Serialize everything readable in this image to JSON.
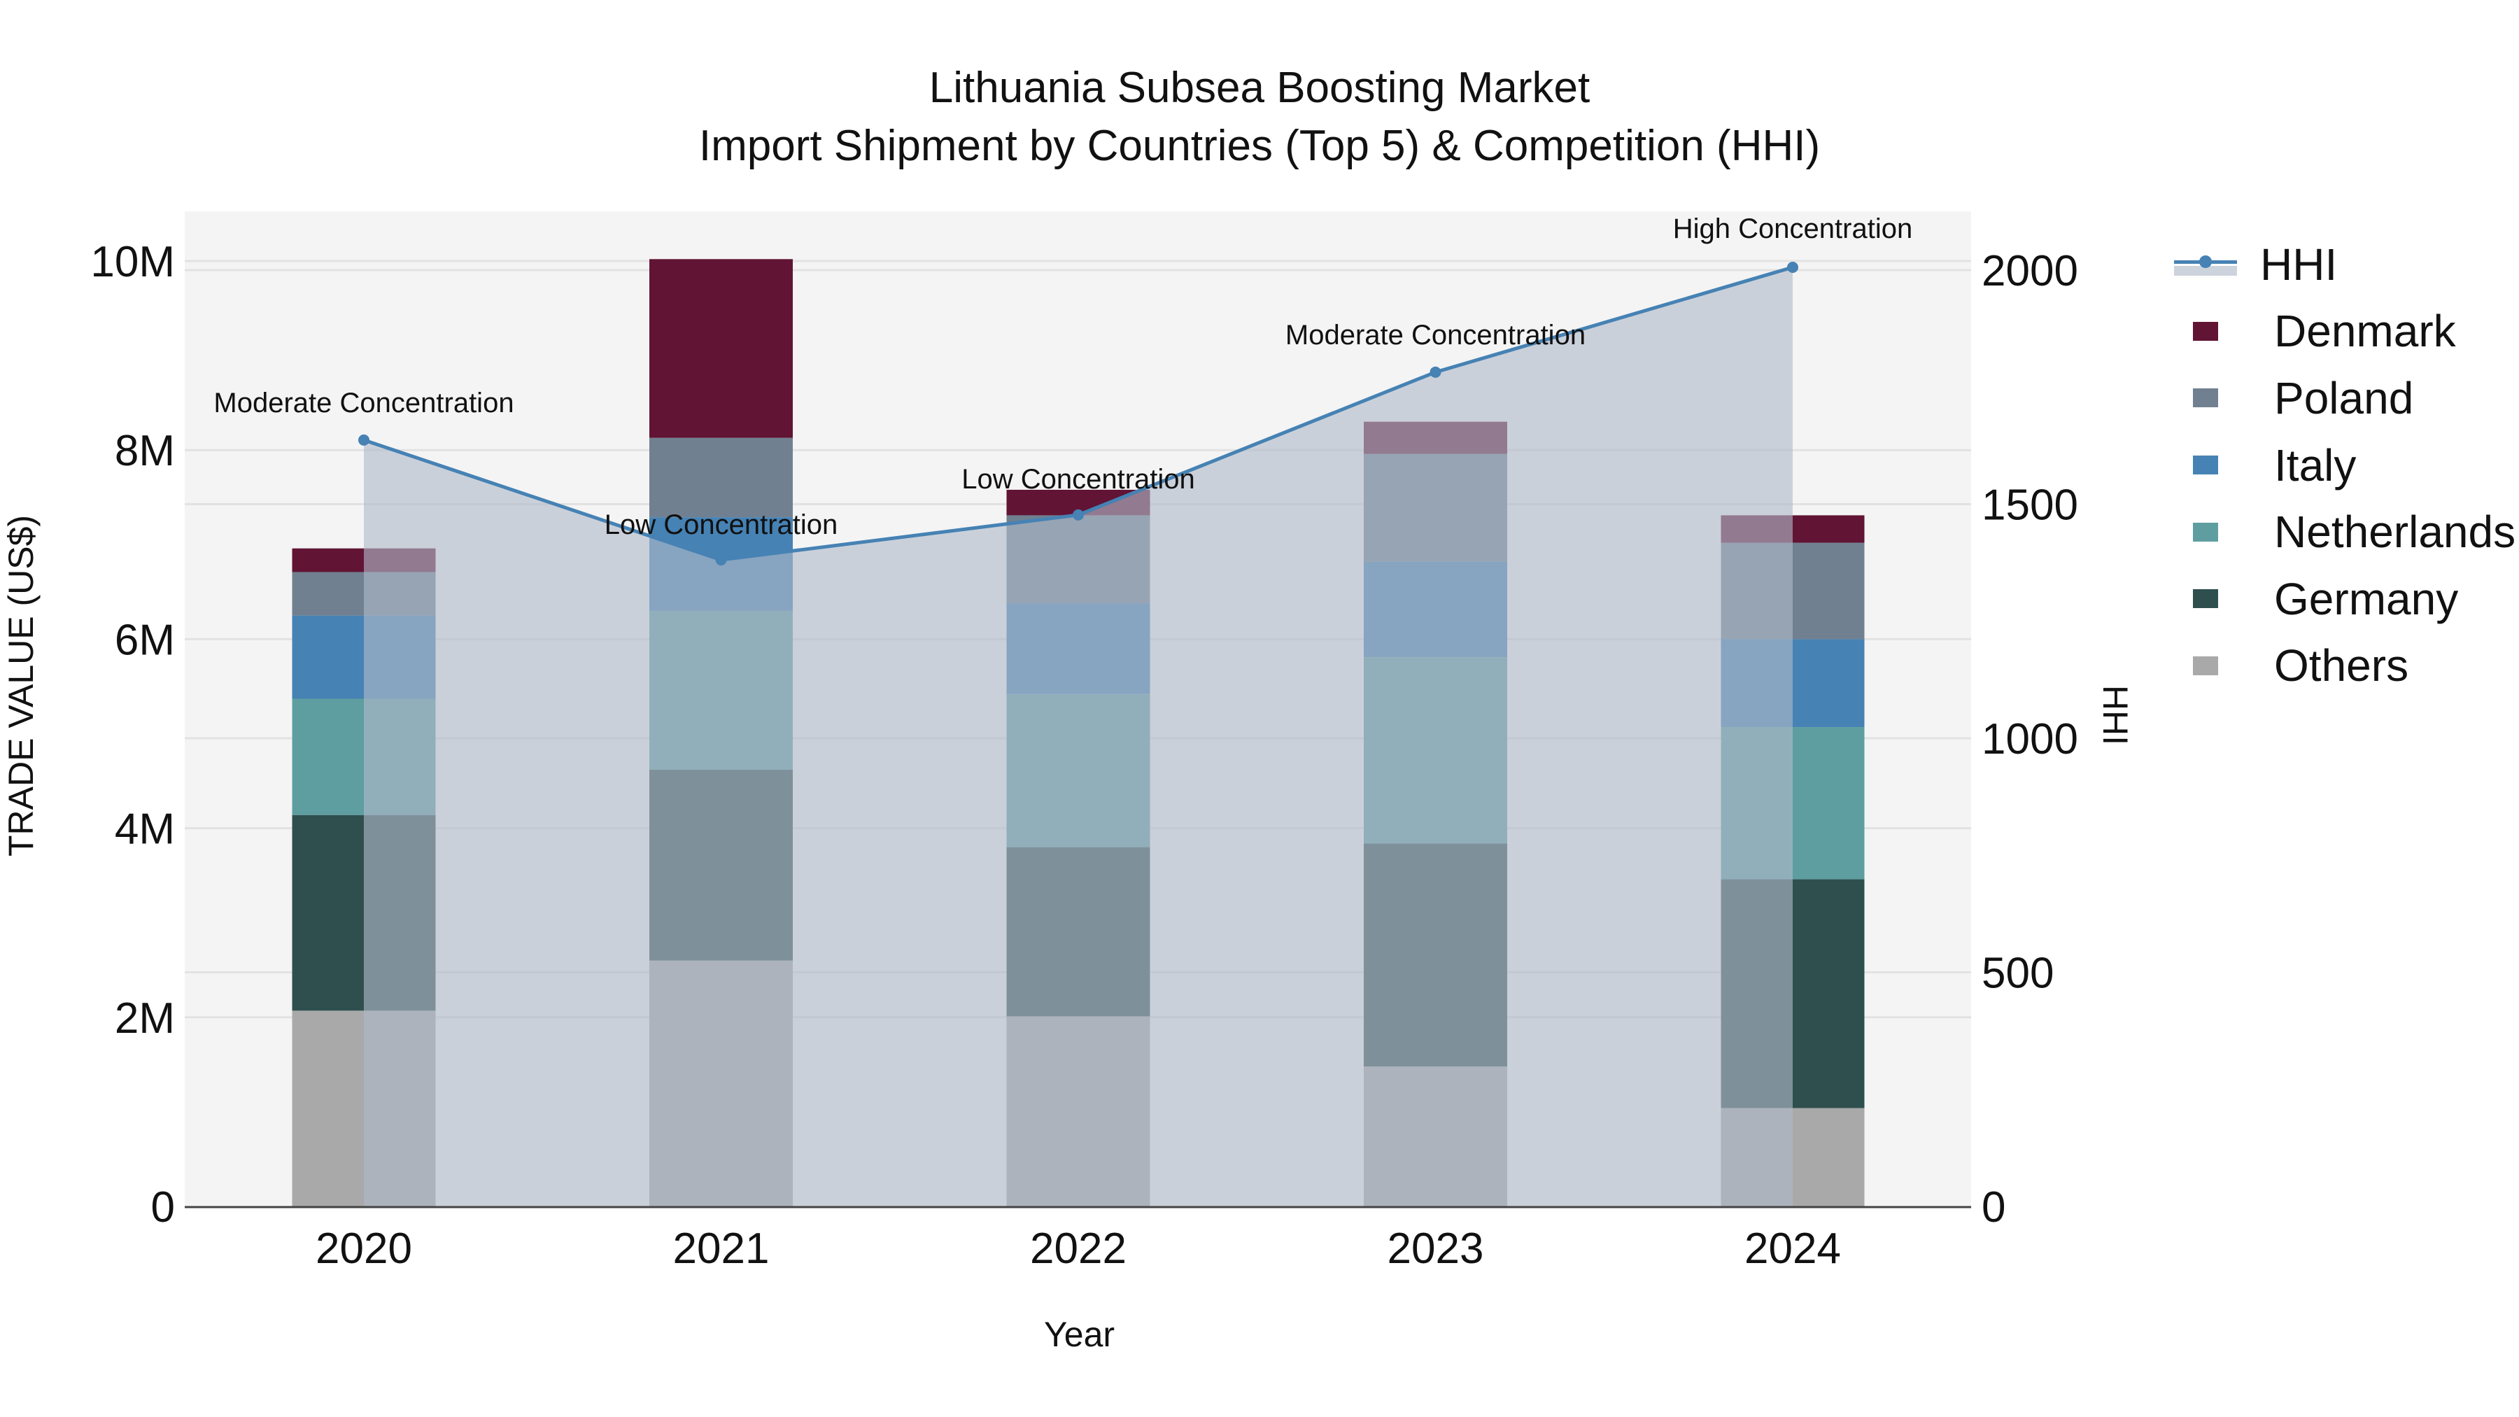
{
  "title": {
    "line1": "Lithuania Subsea Boosting Market",
    "line2": "Import Shipment by Countries (Top 5) & Competition (HHI)"
  },
  "axes": {
    "y_left_title": "TRADE VALUE (US$)",
    "y_right_title": "HHI",
    "x_title": "Year",
    "y_left_ticks": [
      "0",
      "2M",
      "4M",
      "6M",
      "8M",
      "10M"
    ],
    "y_right_ticks": [
      "0",
      "500",
      "1000",
      "1500",
      "2000"
    ]
  },
  "legend": {
    "items": [
      {
        "label": "HHI",
        "type": "line",
        "color": "#4682B4"
      },
      {
        "label": "Denmark",
        "type": "bar",
        "color": "#611434"
      },
      {
        "label": "Poland",
        "type": "bar",
        "color": "#708090"
      },
      {
        "label": "Italy",
        "type": "bar",
        "color": "#4682B4"
      },
      {
        "label": "Netherlands",
        "type": "bar",
        "color": "#5F9EA0"
      },
      {
        "label": "Germany",
        "type": "bar",
        "color": "#2F4F4F"
      },
      {
        "label": "Others",
        "type": "bar",
        "color": "#A9A9A9"
      }
    ]
  },
  "colors": {
    "plot_bg": "#F4F4F4",
    "grid": "#E2E2E2",
    "hhi_line": "#4682B4",
    "hhi_fill": "rgba(176,186,202,0.62)"
  },
  "chart_data": {
    "type": "bar",
    "stacked": true,
    "title": "Lithuania Subsea Boosting Market — Import Shipment by Countries (Top 5) & Competition (HHI)",
    "xlabel": "Year",
    "ylabel": "TRADE VALUE (US$)",
    "y2label": "HHI",
    "categories": [
      "2020",
      "2021",
      "2022",
      "2023",
      "2024"
    ],
    "ylim": [
      0,
      10500000
    ],
    "y2lim": [
      0,
      2100
    ],
    "grid": true,
    "legend_position": "right",
    "series": [
      {
        "name": "Others",
        "color": "#A9A9A9",
        "values": [
          2070000,
          2600000,
          2010000,
          1480000,
          1040000
        ]
      },
      {
        "name": "Germany",
        "color": "#2F4F4F",
        "values": [
          2070000,
          2020000,
          1790000,
          2360000,
          2420000
        ]
      },
      {
        "name": "Netherlands",
        "color": "#5F9EA0",
        "values": [
          1230000,
          1680000,
          1620000,
          1970000,
          1610000
        ]
      },
      {
        "name": "Italy",
        "color": "#4682B4",
        "values": [
          880000,
          990000,
          960000,
          1010000,
          930000
        ]
      },
      {
        "name": "Poland",
        "color": "#708090",
        "values": [
          460000,
          840000,
          930000,
          1140000,
          1020000
        ]
      },
      {
        "name": "Denmark",
        "color": "#611434",
        "values": [
          250000,
          1890000,
          270000,
          340000,
          290000
        ]
      }
    ],
    "line_series": {
      "name": "HHI",
      "axis": "y2",
      "type": "line+area",
      "color": "#4682B4",
      "values": [
        1637,
        1381,
        1477,
        1782,
        2006
      ],
      "annotations": [
        "Moderate Concentration",
        "Low Concentration",
        "Low Concentration",
        "Moderate Concentration",
        "High Concentration"
      ]
    }
  }
}
